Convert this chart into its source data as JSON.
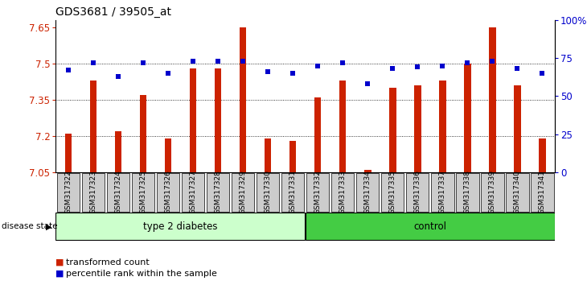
{
  "title": "GDS3681 / 39505_at",
  "samples": [
    "GSM317322",
    "GSM317323",
    "GSM317324",
    "GSM317325",
    "GSM317326",
    "GSM317327",
    "GSM317328",
    "GSM317329",
    "GSM317330",
    "GSM317331",
    "GSM317332",
    "GSM317333",
    "GSM317334",
    "GSM317335",
    "GSM317336",
    "GSM317337",
    "GSM317338",
    "GSM317339",
    "GSM317340",
    "GSM317341"
  ],
  "red_values": [
    7.21,
    7.43,
    7.22,
    7.37,
    7.19,
    7.48,
    7.48,
    7.65,
    7.19,
    7.18,
    7.36,
    7.43,
    7.06,
    7.4,
    7.41,
    7.43,
    7.5,
    7.65,
    7.41,
    7.19
  ],
  "blue_values": [
    67,
    72,
    63,
    72,
    65,
    73,
    73,
    73,
    66,
    65,
    70,
    72,
    58,
    68,
    69,
    70,
    72,
    73,
    68,
    65
  ],
  "ymin": 7.05,
  "ymax": 7.68,
  "y_ticks": [
    7.05,
    7.2,
    7.35,
    7.5,
    7.65
  ],
  "right_yticks": [
    0,
    25,
    50,
    75,
    100
  ],
  "bar_color": "#cc2200",
  "dot_color": "#0000cc",
  "type2_diabetes_count": 10,
  "control_count": 10,
  "group1_label": "type 2 diabetes",
  "group2_label": "control",
  "legend_red": "transformed count",
  "legend_blue": "percentile rank within the sample",
  "disease_state_label": "disease state",
  "tick_bg": "#cccccc",
  "group_bg_light": "#ccffcc",
  "group_bg_dark": "#44cc44",
  "title_fontsize": 10,
  "tick_label_fontsize": 6.5,
  "legend_fontsize": 8
}
